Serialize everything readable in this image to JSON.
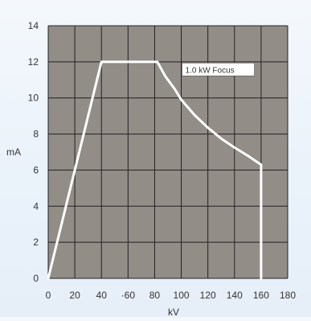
{
  "colors": {
    "plot_bg": "#938d88",
    "grid": "#222222",
    "curve": "#ffffff",
    "text": "#333333"
  },
  "chart_data": {
    "type": "line",
    "xlabel": "kV",
    "ylabel": "mA",
    "xlim": [
      0,
      180
    ],
    "ylim": [
      0,
      14
    ],
    "x_ticks": [
      0,
      20,
      40,
      60,
      80,
      100,
      120,
      140,
      160,
      180
    ],
    "x_tick_labels": [
      "0",
      "20",
      "40",
      "·60",
      "80",
      "100",
      "120",
      "140",
      "160",
      "180"
    ],
    "y_ticks": [
      0,
      2,
      4,
      6,
      8,
      10,
      12,
      14
    ],
    "y_tick_labels": [
      "0",
      "2",
      "4",
      "6",
      "8",
      "10",
      "12",
      "14"
    ],
    "grid": true,
    "series": [
      {
        "name": "1.0 kW Focus",
        "x": [
          0,
          40,
          82,
          88,
          95,
          100,
          110,
          120,
          130,
          140,
          150,
          160,
          160
        ],
        "y": [
          0,
          12,
          12,
          11.2,
          10.5,
          9.9,
          9.05,
          8.35,
          7.75,
          7.25,
          6.8,
          6.3,
          0
        ]
      }
    ],
    "annotations": [
      {
        "text": "1.0 kW Focus",
        "x": 103,
        "y": 11.4,
        "boxed": true
      }
    ]
  }
}
